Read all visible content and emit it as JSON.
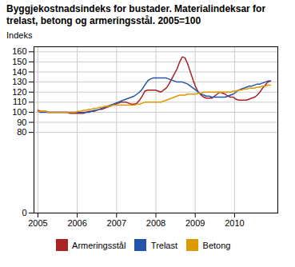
{
  "chart_data": {
    "type": "line",
    "title": "Byggjekostnadsindeks for bustader. Materialindeksar for\ntrelast, betong og armeringsstål. 2005=100",
    "ylabel": "Indeks",
    "x": [
      2005,
      2005.06801,
      2005.13602,
      2005.20403,
      2005.27205,
      2005.34006,
      2005.40807,
      2005.47608,
      2005.54409,
      2005.6121,
      2005.68011,
      2005.74813,
      2005.81614,
      2005.88415,
      2005.95216,
      2006.02017,
      2006.08818,
      2006.1562,
      2006.22421,
      2006.29222,
      2006.36023,
      2006.42824,
      2006.49625,
      2006.56426,
      2006.63228,
      2006.70029,
      2006.7683,
      2006.83631,
      2006.90432,
      2006.97233,
      2007.04034,
      2007.10836,
      2007.17637,
      2007.24438,
      2007.31239,
      2007.3804,
      2007.44841,
      2007.51643,
      2007.58444,
      2007.65245,
      2007.72046,
      2007.78847,
      2007.85648,
      2007.92449,
      2007.99251,
      2008.06052,
      2008.12853,
      2008.19654,
      2008.26455,
      2008.33256,
      2008.40057,
      2008.46859,
      2008.5366,
      2008.60461,
      2008.67262,
      2008.74063,
      2008.80864,
      2008.87666,
      2008.94467,
      2009.01268,
      2009.08069,
      2009.1487,
      2009.21671,
      2009.28472,
      2009.35274,
      2009.42075,
      2009.48876,
      2009.55677,
      2009.62478,
      2009.69279,
      2009.7608,
      2009.82882,
      2009.89683,
      2009.96484,
      2010.03285,
      2010.10086,
      2010.16887,
      2010.23689,
      2010.3049,
      2010.37291,
      2010.44092,
      2010.50893,
      2010.57694,
      2010.64495,
      2010.71297,
      2010.78098,
      2010.84899,
      2010.917
    ],
    "series": [
      {
        "name": "Armeringsstål",
        "color": "#aa2222",
        "values": [
          102,
          101,
          101,
          101,
          100,
          100,
          100,
          100,
          100,
          100,
          100,
          100,
          99,
          99,
          99,
          99,
          99,
          99,
          100,
          101,
          101,
          101,
          102,
          103,
          103,
          104,
          105,
          106,
          107,
          108,
          109,
          110,
          110,
          110,
          109,
          108,
          108,
          109,
          112,
          116,
          121,
          122,
          122,
          122,
          122,
          121,
          120,
          122,
          124,
          128,
          133,
          138,
          143,
          150,
          155,
          154,
          148,
          140,
          132,
          125,
          120,
          117,
          115,
          114,
          114,
          114,
          116,
          118,
          120,
          119,
          118,
          116,
          115,
          115,
          113,
          112,
          112,
          112,
          112,
          113,
          114,
          115,
          117,
          120,
          124,
          127,
          130,
          131
        ]
      },
      {
        "name": "Trelast",
        "color": "#2255aa",
        "values": [
          101,
          100,
          100,
          100,
          100,
          100,
          100,
          100,
          100,
          100,
          100,
          100,
          100,
          100,
          100,
          100,
          100,
          100,
          100,
          100,
          101,
          102,
          102,
          103,
          104,
          105,
          106,
          107,
          108,
          109,
          110,
          111,
          112,
          113,
          114,
          115,
          116,
          118,
          120,
          123,
          127,
          131,
          133,
          134,
          134,
          134,
          134,
          134,
          134,
          133,
          132,
          131,
          130,
          130,
          130,
          129,
          128,
          126,
          124,
          122,
          120,
          118,
          117,
          116,
          116,
          115,
          115,
          115,
          115,
          115,
          115,
          116,
          117,
          118,
          120,
          122,
          123,
          124,
          125,
          126,
          126,
          127,
          128,
          128,
          129,
          130,
          131,
          131
        ]
      },
      {
        "name": "Betong",
        "color": "#dd9900",
        "values": [
          101,
          101,
          101,
          101,
          100,
          100,
          100,
          100,
          100,
          100,
          100,
          100,
          100,
          100,
          100,
          101,
          101,
          102,
          102,
          103,
          103,
          104,
          104,
          105,
          105,
          106,
          106,
          106,
          107,
          107,
          107,
          107,
          107,
          107,
          107,
          107,
          107,
          108,
          108,
          109,
          110,
          110,
          110,
          110,
          110,
          110,
          110,
          111,
          112,
          113,
          114,
          115,
          116,
          117,
          117,
          117,
          118,
          118,
          118,
          118,
          119,
          119,
          120,
          120,
          120,
          120,
          120,
          120,
          120,
          120,
          120,
          120,
          120,
          121,
          121,
          122,
          122,
          123,
          123,
          124,
          124,
          124,
          125,
          125,
          126,
          126,
          127,
          127
        ]
      }
    ],
    "xlim": [
      2004.9,
      2011.1
    ],
    "xticks": [
      2005,
      2006,
      2007,
      2008,
      2009,
      2010
    ],
    "ylim": [
      0,
      165
    ],
    "yticks": [
      0,
      80,
      90,
      100,
      110,
      120,
      130,
      140,
      150,
      160
    ],
    "grid": true,
    "legend": "bottom"
  }
}
